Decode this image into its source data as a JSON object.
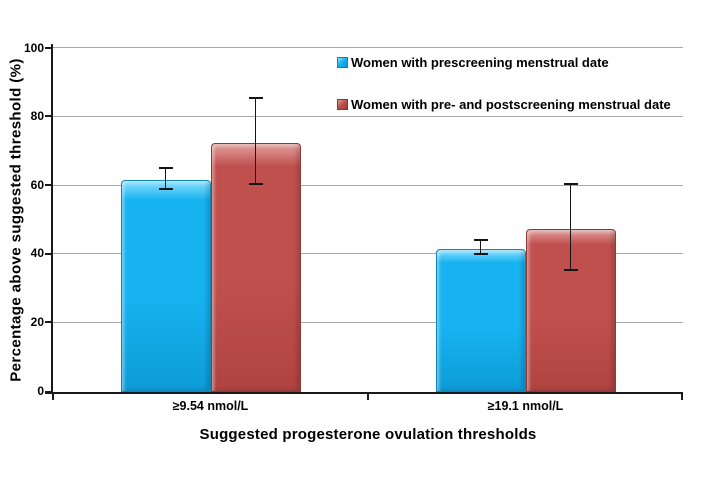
{
  "chart_data": {
    "type": "bar",
    "title": "",
    "xlabel": "Suggested progesterone ovulation thresholds",
    "ylabel": "Percentage above suggested threshold (%)",
    "categories": [
      "≥9.54 nmol/L",
      "≥19.1 nmol/L"
    ],
    "series": [
      {
        "name": "Women with prescreening menstrual date",
        "values": [
          61.5,
          41.5
        ],
        "error_low": [
          59.0,
          40.0
        ],
        "error_high": [
          65.0,
          44.2
        ],
        "color": "#17b3f0",
        "color_light": "#8ae0fe",
        "color_dark": "#0d9bd8",
        "color_border": "#1386b5"
      },
      {
        "name": "Women with pre- and postscreening menstrual date",
        "values": [
          72.5,
          47.5
        ],
        "error_low": [
          60.5,
          35.5
        ],
        "error_high": [
          85.5,
          60.5
        ],
        "color": "#c0504d",
        "color_light": "#e0a09d",
        "color_dark": "#b04340",
        "color_border": "#8f3936"
      }
    ],
    "yticks": [
      0,
      20,
      40,
      60,
      80,
      100
    ],
    "ylim": [
      0,
      100
    ],
    "grid": true,
    "legend_position": "inside-top-right",
    "error_bars": true
  },
  "style": {
    "gridline_color": "#a8a8a8",
    "axis_color": "#1a1a1a",
    "background": "#ffffff"
  }
}
